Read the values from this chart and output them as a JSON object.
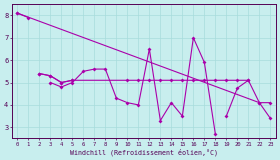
{
  "xlabel": "Windchill (Refroidissement éolien,°C)",
  "background_color": "#c8eeee",
  "grid_color": "#a8dcdc",
  "line_color": "#aa00aa",
  "xlim_min": -0.5,
  "xlim_max": 23.5,
  "ylim_min": 2.5,
  "ylim_max": 8.5,
  "yticks": [
    3,
    4,
    5,
    6,
    7,
    8
  ],
  "xticks": [
    0,
    1,
    2,
    3,
    4,
    5,
    6,
    7,
    8,
    9,
    10,
    11,
    12,
    13,
    14,
    15,
    16,
    17,
    18,
    19,
    20,
    21,
    22,
    23
  ],
  "series": [
    {
      "x": [
        0,
        1
      ],
      "y": [
        8.1,
        7.9
      ]
    },
    {
      "x": [
        3,
        4,
        5,
        6,
        7,
        8,
        9,
        10,
        11,
        12,
        13,
        14,
        15,
        16,
        17,
        18
      ],
      "y": [
        5.0,
        4.8,
        5.0,
        5.5,
        5.6,
        5.6,
        4.3,
        4.1,
        4.0,
        6.5,
        3.3,
        4.1,
        3.5,
        7.0,
        5.9,
        2.7
      ]
    },
    {
      "x": [
        2,
        3,
        4,
        5
      ],
      "y": [
        5.4,
        5.3,
        5.0,
        5.1
      ]
    },
    {
      "x": [
        2,
        3,
        4,
        5,
        10,
        11,
        12,
        13,
        14,
        15,
        16,
        17,
        18,
        19,
        20,
        21
      ],
      "y": [
        5.4,
        5.3,
        5.0,
        5.1,
        5.1,
        5.1,
        5.1,
        5.1,
        5.1,
        5.1,
        5.1,
        5.1,
        5.1,
        5.1,
        5.1,
        5.1
      ]
    },
    {
      "x": [
        0,
        22,
        23
      ],
      "y": [
        8.1,
        4.1,
        3.4
      ]
    },
    {
      "x": [
        19,
        20,
        21,
        22,
        23
      ],
      "y": [
        3.5,
        4.75,
        5.1,
        4.1,
        4.1
      ]
    }
  ],
  "lw": 0.8,
  "ms": 2.0
}
